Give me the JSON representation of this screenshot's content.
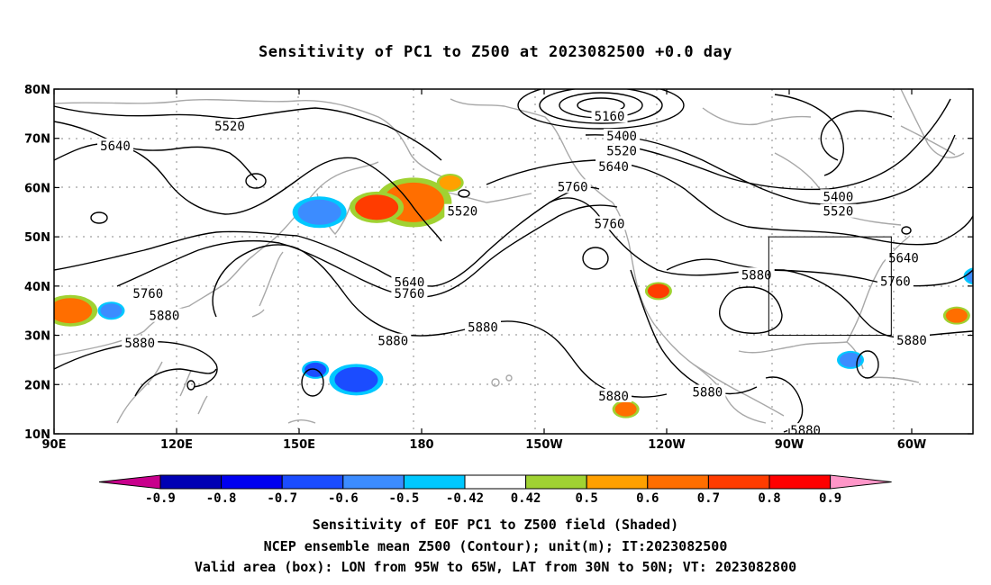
{
  "title": "Sensitivity of PC1 to Z500 at 2023082500 +0.0 day",
  "map": {
    "lon_ticks": [
      {
        "lon": 90,
        "label": "90E"
      },
      {
        "lon": 120,
        "label": "120E"
      },
      {
        "lon": 150,
        "label": "150E"
      },
      {
        "lon": 180,
        "label": "180"
      },
      {
        "lon": 210,
        "label": "150W"
      },
      {
        "lon": 240,
        "label": "120W"
      },
      {
        "lon": 270,
        "label": "90W"
      },
      {
        "lon": 300,
        "label": "60W"
      }
    ],
    "lat_ticks": [
      {
        "lat": 80,
        "label": "80N"
      },
      {
        "lat": 70,
        "label": "70N"
      },
      {
        "lat": 60,
        "label": "60N"
      },
      {
        "lat": 50,
        "label": "50N"
      },
      {
        "lat": 40,
        "label": "40N"
      },
      {
        "lat": 30,
        "label": "30N"
      },
      {
        "lat": 20,
        "label": "20N"
      },
      {
        "lat": 10,
        "label": "10N"
      }
    ],
    "contour_labels": [
      {
        "text": "5520",
        "lon": 133,
        "lat": 72.5
      },
      {
        "text": "5640",
        "lon": 105,
        "lat": 68.5
      },
      {
        "text": "5160",
        "lon": 226,
        "lat": 74.5
      },
      {
        "text": "5400",
        "lon": 229,
        "lat": 70.5
      },
      {
        "text": "5520",
        "lon": 229,
        "lat": 67.5
      },
      {
        "text": "5640",
        "lon": 227,
        "lat": 64.3
      },
      {
        "text": "5760",
        "lon": 217,
        "lat": 60.2
      },
      {
        "text": "5520",
        "lon": 190,
        "lat": 55.2
      },
      {
        "text": "5760",
        "lon": 226,
        "lat": 52.7
      },
      {
        "text": "5400",
        "lon": 282,
        "lat": 58.2
      },
      {
        "text": "5520",
        "lon": 282,
        "lat": 55.2
      },
      {
        "text": "5640",
        "lon": 298,
        "lat": 45.7
      },
      {
        "text": "5880",
        "lon": 262,
        "lat": 42.3
      },
      {
        "text": "5760",
        "lon": 296,
        "lat": 41.0
      },
      {
        "text": "5640",
        "lon": 177,
        "lat": 40.8
      },
      {
        "text": "5760",
        "lon": 177,
        "lat": 38.5
      },
      {
        "text": "5760",
        "lon": 113,
        "lat": 38.5
      },
      {
        "text": "5880",
        "lon": 117,
        "lat": 34.0
      },
      {
        "text": "5880",
        "lon": 111,
        "lat": 28.5
      },
      {
        "text": "5880",
        "lon": 173,
        "lat": 28.9
      },
      {
        "text": "5880",
        "lon": 195,
        "lat": 31.7
      },
      {
        "text": "5880",
        "lon": 300,
        "lat": 29.0
      },
      {
        "text": "5880",
        "lon": 227,
        "lat": 17.7
      },
      {
        "text": "5880",
        "lon": 250,
        "lat": 18.5
      },
      {
        "text": "5880",
        "lon": 274,
        "lat": 10.7
      }
    ],
    "valid_box": {
      "lon_min": 265,
      "lon_max": 295,
      "lat_min": 30,
      "lat_max": 50
    },
    "sensitivity_blobs": [
      {
        "lon": 178,
        "lat": 57,
        "level": 0.6,
        "size": "large"
      },
      {
        "lon": 169,
        "lat": 56,
        "level": 0.7,
        "size": "medium"
      },
      {
        "lon": 94,
        "lat": 35,
        "level": 0.6,
        "size": "medium"
      },
      {
        "lon": 187,
        "lat": 61,
        "level": 0.5,
        "size": "small"
      },
      {
        "lon": 230,
        "lat": 15,
        "level": 0.6,
        "size": "small"
      },
      {
        "lon": 238,
        "lat": 39,
        "level": 0.7,
        "size": "small"
      },
      {
        "lon": 285,
        "lat": 25,
        "level": -0.5,
        "size": "small"
      },
      {
        "lon": 311,
        "lat": 34,
        "level": 0.6,
        "size": "small"
      },
      {
        "lon": 164,
        "lat": 21,
        "level": -0.6,
        "size": "medium"
      },
      {
        "lon": 155,
        "lat": 55,
        "level": -0.5,
        "size": "medium"
      },
      {
        "lon": 104,
        "lat": 35,
        "level": -0.5,
        "size": "small"
      },
      {
        "lon": 154,
        "lat": 23,
        "level": -0.6,
        "size": "small"
      },
      {
        "lon": 316,
        "lat": 42,
        "level": -0.5,
        "size": "small"
      }
    ]
  },
  "colorbar": {
    "colors": [
      "#0000b4",
      "#0000f0",
      "#1b4cff",
      "#3c8cff",
      "#00c8ff",
      "#ffffff",
      "#a0d232",
      "#ffa000",
      "#ff6e00",
      "#ff3c00",
      "#ff0000"
    ],
    "left_arrow_color": "#c8008c",
    "right_arrow_color": "#ff96c8",
    "labels": [
      "-0.9",
      "-0.8",
      "-0.7",
      "-0.6",
      "-0.5",
      "-0.42",
      "0.42",
      "0.5",
      "0.6",
      "0.7",
      "0.8",
      "0.9"
    ]
  },
  "captions": {
    "line1": "Sensitivity of EOF PC1 to Z500 field (Shaded)",
    "line2": "NCEP ensemble mean Z500 (Contour); unit(m); IT:2023082500",
    "line3": "Valid area (box): LON from 95W to 65W, LAT from 30N to 50N; VT: 2023082800"
  }
}
